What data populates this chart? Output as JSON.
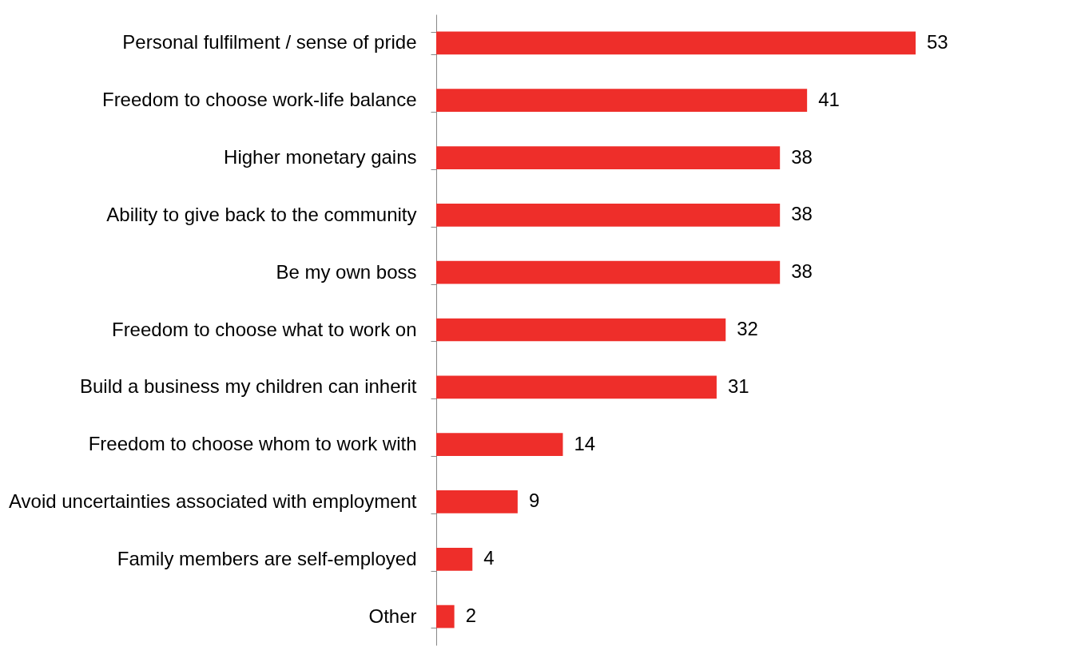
{
  "chart_data": {
    "type": "bar",
    "orientation": "horizontal",
    "categories": [
      "Personal fulfilment / sense of pride",
      "Freedom to choose work-life balance",
      "Higher monetary gains",
      "Ability to give back to the community",
      "Be my own boss",
      "Freedom to choose what to work on",
      "Build a business my children can inherit",
      "Freedom to choose whom to work with",
      "Avoid uncertainties associated with employment",
      "Family members are self-employed",
      "Other"
    ],
    "values": [
      53,
      41,
      38,
      38,
      38,
      32,
      31,
      14,
      9,
      4,
      2
    ],
    "color": "#ee2e2a",
    "data_labels": true
  }
}
